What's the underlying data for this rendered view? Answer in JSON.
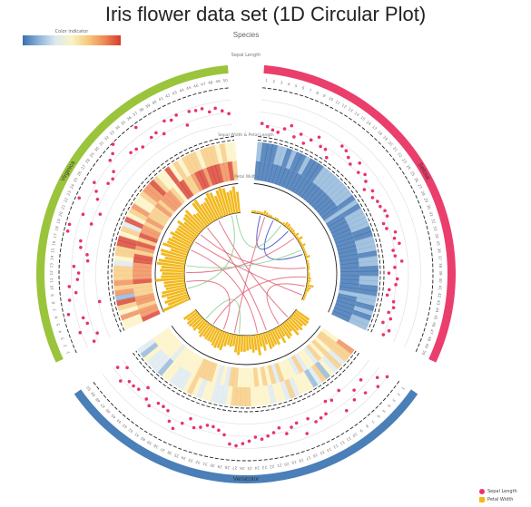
{
  "title": "Iris flower data set (1D Circular Plot)",
  "colorbar": {
    "label": "Color indicator"
  },
  "chart_data": {
    "type": "circular",
    "title": "Iris flower data set (1D Circular Plot)",
    "tracks": [
      {
        "name": "Species",
        "kind": "ideogram"
      },
      {
        "name": "Sepal Length",
        "kind": "scatter",
        "range": [
          4,
          8
        ]
      },
      {
        "name": "Sepal Width & Petal Length",
        "kind": "heatmap"
      },
      {
        "name": "Petal Width",
        "kind": "bar",
        "range": [
          0,
          2.5
        ]
      },
      {
        "kind": "links"
      }
    ],
    "species": [
      {
        "name": "Setosa",
        "color": "#ea3e6c"
      },
      {
        "name": "Versicolor",
        "color": "#4a7fb8"
      },
      {
        "name": "Virginica",
        "color": "#9ac43b"
      }
    ],
    "sepal_length": {
      "Setosa": [
        5.1,
        4.9,
        4.7,
        4.6,
        5.0,
        5.4,
        4.6,
        5.0,
        4.4,
        4.9,
        5.4,
        4.8,
        4.8,
        4.3,
        5.8,
        5.7,
        5.4,
        5.1,
        5.7,
        5.1,
        5.4,
        5.1,
        4.6,
        5.1,
        4.8,
        5.0,
        5.0,
        5.2,
        5.2,
        4.7,
        4.8,
        5.4,
        5.2,
        5.5,
        4.9,
        5.0,
        5.5,
        4.9,
        4.4,
        5.1,
        5.0,
        4.5,
        4.4,
        5.0,
        5.1,
        4.8,
        5.1,
        4.6,
        5.3,
        5.0
      ],
      "Versicolor": [
        7.0,
        6.4,
        6.9,
        5.5,
        6.5,
        5.7,
        6.3,
        4.9,
        6.6,
        5.2,
        5.0,
        5.9,
        6.0,
        6.1,
        5.6,
        6.7,
        5.6,
        5.8,
        6.2,
        5.6,
        5.9,
        6.1,
        6.3,
        6.1,
        6.4,
        6.6,
        6.8,
        6.7,
        6.0,
        5.7,
        5.5,
        5.5,
        5.8,
        6.0,
        5.4,
        6.0,
        6.7,
        6.3,
        5.6,
        5.5,
        5.5,
        6.1,
        5.8,
        5.0,
        5.6,
        5.7,
        5.7,
        6.2,
        5.1,
        5.7
      ],
      "Virginica": [
        6.3,
        5.8,
        7.1,
        6.3,
        6.5,
        7.6,
        4.9,
        7.3,
        6.7,
        7.2,
        6.5,
        6.4,
        6.8,
        5.7,
        5.8,
        6.4,
        6.5,
        7.7,
        7.7,
        6.0,
        6.9,
        5.6,
        7.7,
        6.3,
        6.7,
        7.2,
        6.2,
        6.1,
        6.4,
        7.2,
        7.4,
        7.9,
        6.4,
        6.3,
        6.1,
        7.7,
        6.3,
        6.4,
        6.0,
        6.9,
        6.7,
        6.9,
        5.8,
        6.8,
        6.7,
        6.7,
        6.3,
        6.5,
        6.2,
        5.9
      ]
    },
    "petal_width": {
      "Setosa": [
        0.2,
        0.2,
        0.2,
        0.2,
        0.2,
        0.4,
        0.3,
        0.2,
        0.2,
        0.1,
        0.2,
        0.2,
        0.1,
        0.1,
        0.2,
        0.4,
        0.4,
        0.3,
        0.3,
        0.3,
        0.2,
        0.4,
        0.2,
        0.5,
        0.2,
        0.2,
        0.4,
        0.2,
        0.2,
        0.2,
        0.2,
        0.4,
        0.1,
        0.2,
        0.2,
        0.2,
        0.2,
        0.1,
        0.2,
        0.2,
        0.3,
        0.3,
        0.2,
        0.6,
        0.4,
        0.3,
        0.2,
        0.2,
        0.2,
        0.2
      ],
      "Versicolor": [
        1.4,
        1.5,
        1.5,
        1.3,
        1.5,
        1.3,
        1.6,
        1.0,
        1.3,
        1.4,
        1.0,
        1.5,
        1.0,
        1.4,
        1.3,
        1.4,
        1.5,
        1.0,
        1.5,
        1.1,
        1.8,
        1.3,
        1.5,
        1.2,
        1.3,
        1.4,
        1.4,
        1.7,
        1.5,
        1.0,
        1.1,
        1.0,
        1.2,
        1.6,
        1.5,
        1.6,
        1.5,
        1.3,
        1.3,
        1.3,
        1.2,
        1.4,
        1.2,
        1.0,
        1.3,
        1.2,
        1.3,
        1.3,
        1.1,
        1.3
      ],
      "Virginica": [
        2.5,
        1.9,
        2.1,
        1.8,
        2.2,
        2.1,
        1.7,
        1.8,
        1.8,
        2.5,
        2.0,
        1.9,
        2.1,
        2.0,
        2.4,
        2.3,
        1.8,
        2.2,
        2.3,
        1.5,
        2.3,
        2.0,
        2.0,
        1.8,
        2.1,
        1.8,
        1.8,
        1.8,
        2.1,
        1.6,
        1.9,
        2.0,
        2.2,
        1.5,
        1.4,
        2.3,
        2.4,
        1.8,
        1.8,
        2.1,
        2.4,
        2.3,
        1.9,
        2.3,
        2.5,
        2.3,
        1.9,
        2.0,
        2.3,
        1.8
      ]
    },
    "heatmap_colors": [
      "#3a6fb0",
      "#8db4d8",
      "#dce9ef",
      "#fbf3c4",
      "#f6c97e",
      "#ef8a55",
      "#d73c2c"
    ]
  },
  "legend": [
    {
      "label": "Sepal Length",
      "color": "#e8336b"
    },
    {
      "label": "Petal Width",
      "color": "#f2b81b"
    }
  ]
}
